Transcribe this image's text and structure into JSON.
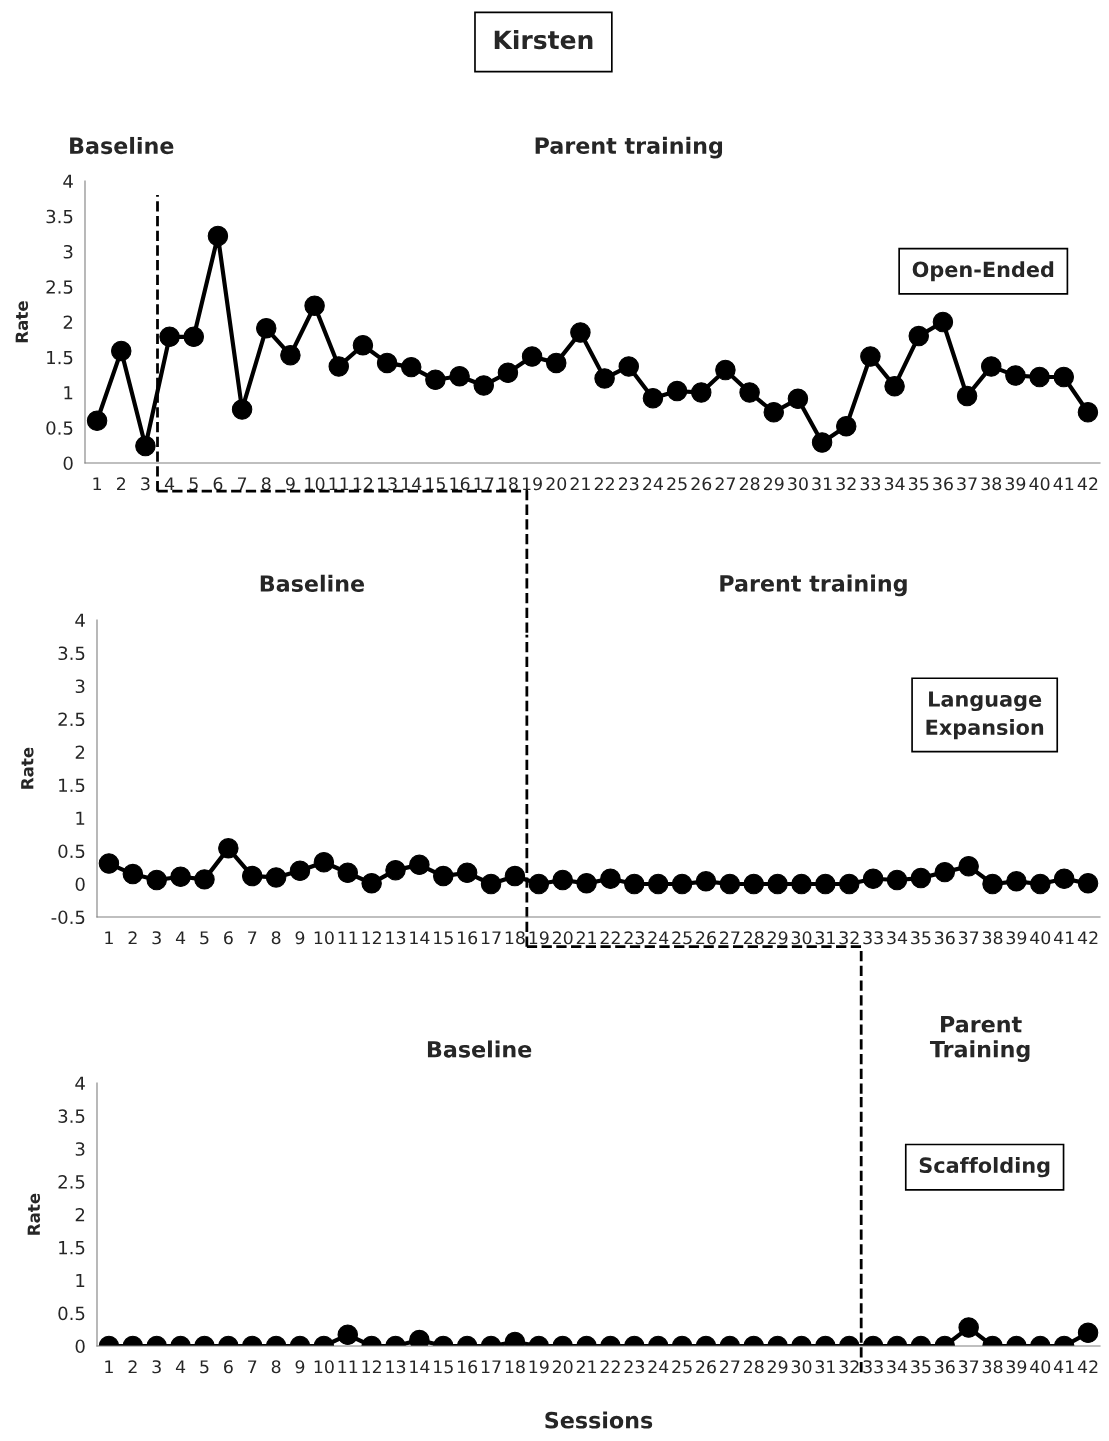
{
  "chart_data": [
    {
      "type": "line",
      "title": "Kirsten",
      "ylabel": "Rate",
      "annotations": [
        "Baseline",
        "Parent training",
        "Open-Ended"
      ],
      "x": [
        1,
        2,
        3,
        4,
        5,
        6,
        7,
        8,
        9,
        10,
        11,
        12,
        13,
        14,
        15,
        16,
        17,
        18,
        19,
        20,
        21,
        22,
        23,
        24,
        25,
        26,
        27,
        28,
        29,
        30,
        31,
        32,
        33,
        34,
        35,
        36,
        37,
        38,
        39,
        40,
        41,
        42
      ],
      "series": [
        {
          "color": "#000000",
          "values": [
            0.6,
            1.59,
            0.24,
            1.79,
            1.79,
            3.22,
            0.76,
            1.91,
            1.53,
            2.23,
            1.37,
            1.67,
            1.42,
            1.36,
            1.18,
            1.23,
            1.1,
            1.28,
            1.51,
            1.42,
            1.85,
            1.2,
            1.37,
            0.92,
            1.02,
            1.0,
            1.32,
            1.0,
            0.72,
            0.91,
            0.29,
            0.52,
            1.51,
            1.09,
            1.8,
            2.0,
            0.95,
            1.37,
            1.24,
            1.22,
            1.22,
            0.72
          ]
        }
      ],
      "xlim": [
        0.5,
        42.5
      ],
      "xticks": [
        1,
        2,
        3,
        4,
        5,
        6,
        7,
        8,
        9,
        10,
        11,
        12,
        13,
        14,
        15,
        16,
        17,
        18,
        19,
        20,
        21,
        22,
        23,
        24,
        25,
        26,
        27,
        28,
        29,
        30,
        31,
        32,
        33,
        34,
        35,
        36,
        37,
        38,
        39,
        40,
        41,
        42
      ],
      "ylim": [
        0,
        4
      ],
      "yticks": [
        0,
        0.5,
        1,
        1.5,
        2,
        2.5,
        3,
        3.5,
        4
      ],
      "ref_lines": [
        {
          "axis": "x",
          "value": 3.5,
          "color": "#000000",
          "line_style": "dashed"
        }
      ],
      "grid": false,
      "legend": false,
      "marker": "circle",
      "line_style": "solid"
    },
    {
      "type": "line",
      "ylabel": "Rate",
      "annotations": [
        "Baseline",
        "Parent training",
        "Language\nExpansion"
      ],
      "x": [
        1,
        2,
        3,
        4,
        5,
        6,
        7,
        8,
        9,
        10,
        11,
        12,
        13,
        14,
        15,
        16,
        17,
        18,
        19,
        20,
        21,
        22,
        23,
        24,
        25,
        26,
        27,
        28,
        29,
        30,
        31,
        32,
        33,
        34,
        35,
        36,
        37,
        38,
        39,
        40,
        41,
        42
      ],
      "series": [
        {
          "color": "#000000",
          "values": [
            0.31,
            0.15,
            0.06,
            0.11,
            0.07,
            0.54,
            0.12,
            0.1,
            0.2,
            0.33,
            0.17,
            0.01,
            0.21,
            0.29,
            0.12,
            0.17,
            0,
            0.12,
            0,
            0.06,
            0.01,
            0.08,
            0,
            0,
            0,
            0.04,
            0,
            0,
            0,
            0,
            0,
            0,
            0.08,
            0.06,
            0.09,
            0.18,
            0.27,
            0,
            0.04,
            0,
            0.08,
            0.01
          ]
        }
      ],
      "xlim": [
        0.5,
        42.5
      ],
      "xticks": [
        1,
        2,
        3,
        4,
        5,
        6,
        7,
        8,
        9,
        10,
        11,
        12,
        13,
        14,
        15,
        16,
        17,
        18,
        19,
        20,
        21,
        22,
        23,
        24,
        25,
        26,
        27,
        28,
        29,
        30,
        31,
        32,
        33,
        34,
        35,
        36,
        37,
        38,
        39,
        40,
        41,
        42
      ],
      "ylim": [
        -0.5,
        4
      ],
      "yticks": [
        -0.5,
        0,
        0.5,
        1,
        1.5,
        2,
        2.5,
        3,
        3.5,
        4
      ],
      "ref_lines": [
        {
          "axis": "x",
          "value": 18.5,
          "color": "#000000",
          "line_style": "dashed"
        }
      ],
      "grid": false,
      "legend": false,
      "marker": "circle",
      "line_style": "solid"
    },
    {
      "type": "line",
      "ylabel": "Rate",
      "xlabel": "Sessions",
      "annotations": [
        "Baseline",
        "Parent\nTraining",
        "Scaffolding"
      ],
      "x": [
        1,
        2,
        3,
        4,
        5,
        6,
        7,
        8,
        9,
        10,
        11,
        12,
        13,
        14,
        15,
        16,
        17,
        18,
        19,
        20,
        21,
        22,
        23,
        24,
        25,
        26,
        27,
        28,
        29,
        30,
        31,
        32,
        33,
        34,
        35,
        36,
        37,
        38,
        39,
        40,
        41,
        42
      ],
      "series": [
        {
          "color": "#000000",
          "values": [
            0,
            0,
            0,
            0,
            0,
            0,
            0,
            0,
            0,
            0,
            0.17,
            0,
            0,
            0.09,
            0,
            0,
            0,
            0.06,
            0,
            0,
            0,
            0,
            0,
            0,
            0,
            0,
            0,
            0,
            0,
            0,
            0,
            0,
            0,
            0,
            0,
            0,
            0.28,
            0,
            0,
            0,
            0,
            0.2
          ]
        }
      ],
      "xlim": [
        0.5,
        42.5
      ],
      "xticks": [
        1,
        2,
        3,
        4,
        5,
        6,
        7,
        8,
        9,
        10,
        11,
        12,
        13,
        14,
        15,
        16,
        17,
        18,
        19,
        20,
        21,
        22,
        23,
        24,
        25,
        26,
        27,
        28,
        29,
        30,
        31,
        32,
        33,
        34,
        35,
        36,
        37,
        38,
        39,
        40,
        41,
        42
      ],
      "ylim": [
        0,
        4
      ],
      "yticks": [
        0,
        0.5,
        1,
        1.5,
        2,
        2.5,
        3,
        3.5,
        4
      ],
      "ref_lines": [
        {
          "axis": "x",
          "value": 32.5,
          "color": "#000000",
          "line_style": "dashed"
        }
      ],
      "grid": false,
      "legend": false,
      "marker": "circle",
      "line_style": "solid"
    }
  ]
}
